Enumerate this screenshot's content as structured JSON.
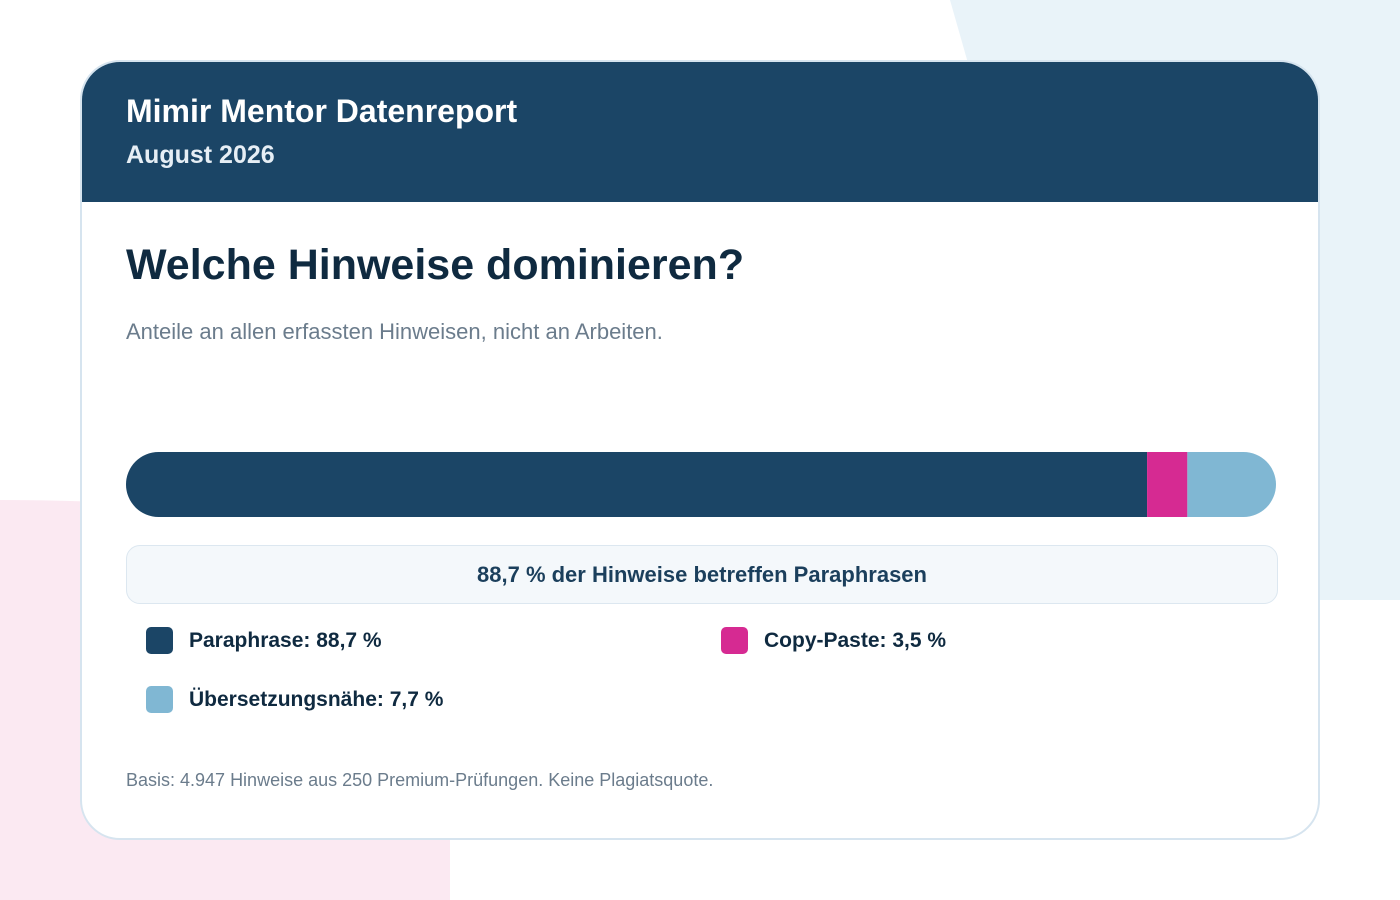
{
  "header": {
    "title": "Mimir Mentor Datenreport",
    "date": "August 2026"
  },
  "chart_data": {
    "type": "bar",
    "orientation": "horizontal-stacked",
    "title": "Welche Hinweise dominieren?",
    "subtitle": "Anteile an allen erfassten Hinweisen, nicht an Arbeiten.",
    "unit": "%",
    "xlim": [
      0,
      100
    ],
    "grid": false,
    "legend_placement": "bottom",
    "series": [
      {
        "name": "Paraphrase",
        "value": 88.7,
        "color": "#1b4566",
        "legend_label": "Paraphrase: 88,7 %"
      },
      {
        "name": "Copy-Paste",
        "value": 3.5,
        "color": "#d62a92",
        "legend_label": "Copy-Paste: 3,5 %"
      },
      {
        "name": "Übersetzungsnähe",
        "value": 7.7,
        "color": "#80b7d3",
        "legend_label": "Übersetzungsnähe: 7,7 %"
      }
    ],
    "callout": "88,7 % der Hinweise betreffen Paraphrasen",
    "footnote": "Basis: 4.947 Hinweise aus 250 Premium-Prüfungen. Keine Plagiatsquote."
  }
}
